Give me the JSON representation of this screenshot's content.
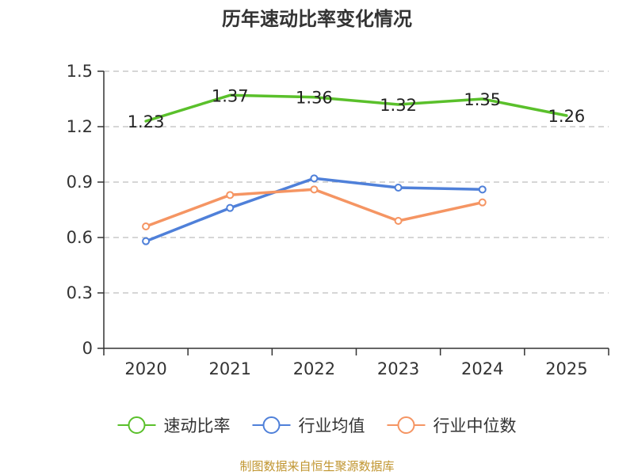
{
  "source_note": "制图数据来自恒生聚源数据库",
  "colors": {
    "grid": "#c8c8c8",
    "axis": "#333333",
    "source": "#c0952f"
  },
  "chart_data": {
    "type": "line",
    "title": "历年速动比率变化情况",
    "categories": [
      "2020",
      "2021",
      "2022",
      "2023",
      "2024",
      "2025"
    ],
    "ylim": [
      0,
      1.5
    ],
    "yticks": [
      "0",
      "0.3",
      "0.6",
      "0.9",
      "1.2",
      "1.5"
    ],
    "grid": true,
    "legend_position": "bottom",
    "series": [
      {
        "name": "速动比率",
        "color": "#5ac02b",
        "values": [
          1.23,
          1.37,
          1.36,
          1.32,
          1.35,
          1.26
        ],
        "labels": [
          "1.23",
          "1.37",
          "1.36",
          "1.32",
          "1.35",
          "1.26"
        ],
        "show_labels": true,
        "markers": false
      },
      {
        "name": "行业均值",
        "color": "#4f80d9",
        "values": [
          0.58,
          0.76,
          0.92,
          0.87,
          0.86,
          null
        ],
        "show_labels": false,
        "markers": true
      },
      {
        "name": "行业中位数",
        "color": "#f59563",
        "values": [
          0.66,
          0.83,
          0.86,
          0.69,
          0.79,
          null
        ],
        "show_labels": false,
        "markers": true
      }
    ]
  }
}
